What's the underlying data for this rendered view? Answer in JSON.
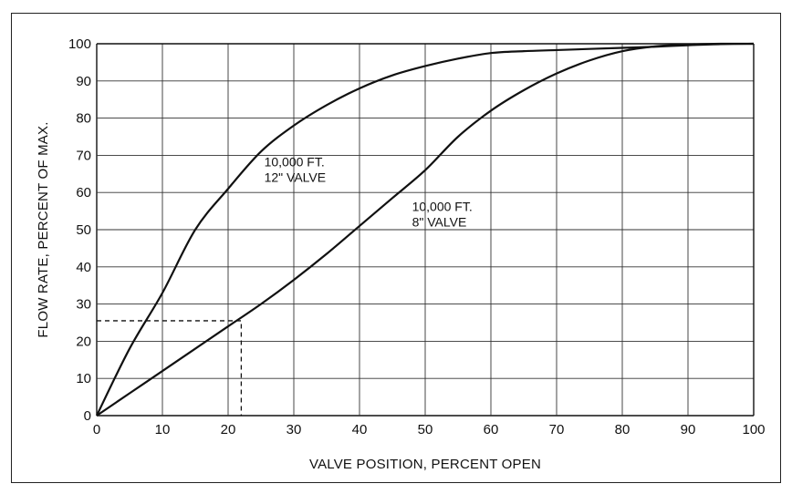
{
  "chart_data": {
    "type": "line",
    "title": "",
    "xlabel": "VALVE POSITION, PERCENT OPEN",
    "ylabel": "FLOW RATE, PERCENT OF MAX.",
    "xlim": [
      0,
      100
    ],
    "ylim": [
      0,
      100
    ],
    "grid": true,
    "x_ticks": [
      "0",
      "10",
      "20",
      "30",
      "40",
      "50",
      "60",
      "70",
      "80",
      "90",
      "100"
    ],
    "y_ticks": [
      "0",
      "10",
      "20",
      "30",
      "40",
      "50",
      "60",
      "70",
      "80",
      "90",
      "100"
    ],
    "series": [
      {
        "name": "10,000 FT. 12\" VALVE",
        "color": "#111111",
        "x": [
          0,
          5,
          10,
          15,
          20,
          25,
          30,
          35,
          40,
          45,
          50,
          55,
          60,
          65,
          70,
          75,
          80,
          85,
          90,
          95,
          100
        ],
        "y": [
          0,
          18,
          33,
          50,
          61,
          71,
          78,
          83.5,
          88,
          91.5,
          94,
          96,
          97.5,
          98,
          98.3,
          98.6,
          98.9,
          99.2,
          99.6,
          99.9,
          100
        ]
      },
      {
        "name": "10,000 FT. 8\" VALVE",
        "color": "#111111",
        "x": [
          0,
          5,
          10,
          15,
          20,
          25,
          30,
          35,
          40,
          45,
          50,
          55,
          60,
          65,
          70,
          75,
          80,
          85,
          90,
          95,
          100
        ],
        "y": [
          0,
          6,
          12,
          18,
          24,
          30,
          36.5,
          43.5,
          51,
          58.5,
          66,
          75,
          82,
          87.5,
          92,
          95.5,
          98,
          99.3,
          99.8,
          100,
          100
        ]
      }
    ],
    "annotations": [
      {
        "lines": [
          "10,000 FT.",
          "12\" VALVE"
        ],
        "x": 25.5,
        "y": 67
      },
      {
        "lines": [
          "10,000 FT.",
          "8\" VALVE"
        ],
        "x": 48,
        "y": 55
      }
    ],
    "reference_line": {
      "x": 22,
      "y": 25.5,
      "style": "dashed"
    }
  }
}
